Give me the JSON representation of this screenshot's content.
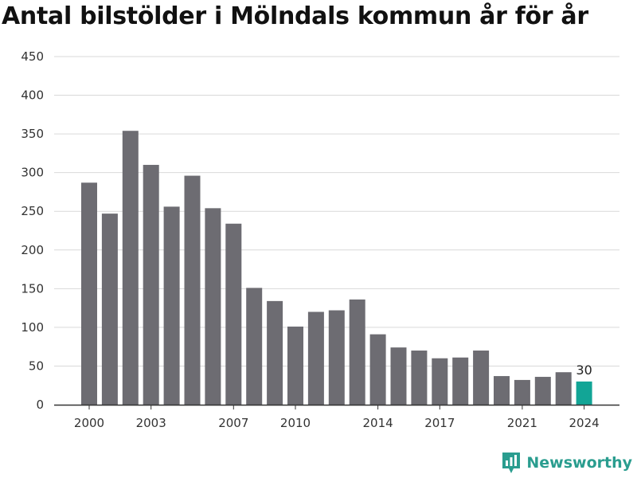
{
  "chart_data": {
    "type": "bar",
    "title": "Antal bilstölder i Mölndals kommun år för år",
    "xlabel": "",
    "ylabel": "",
    "categories": [
      "2000",
      "2001",
      "2002",
      "2003",
      "2004",
      "2005",
      "2006",
      "2007",
      "2008",
      "2009",
      "2010",
      "2011",
      "2012",
      "2013",
      "2014",
      "2015",
      "2016",
      "2017",
      "2018",
      "2019",
      "2020",
      "2021",
      "2022",
      "2023",
      "2024"
    ],
    "values": [
      287,
      247,
      354,
      310,
      256,
      296,
      254,
      234,
      151,
      134,
      101,
      120,
      122,
      136,
      91,
      74,
      70,
      60,
      61,
      70,
      37,
      32,
      36,
      42,
      30
    ],
    "x_tick_labels": [
      "2000",
      "2003",
      "2007",
      "2010",
      "2014",
      "2017",
      "2021",
      "2024"
    ],
    "y_ticks": [
      0,
      50,
      100,
      150,
      200,
      250,
      300,
      350,
      400,
      450
    ],
    "ylim": [
      0,
      450
    ],
    "grid": true,
    "legend": "none",
    "highlight": {
      "category": "2024",
      "label": "30"
    },
    "colors": {
      "bar": "#6d6c72",
      "highlight": "#12a596",
      "grid": "#d9d9d9",
      "axis": "#333333"
    }
  },
  "brand": {
    "name": "Newsworthy",
    "icon": "bar-chart-icon",
    "color": "#2a9d8f"
  }
}
